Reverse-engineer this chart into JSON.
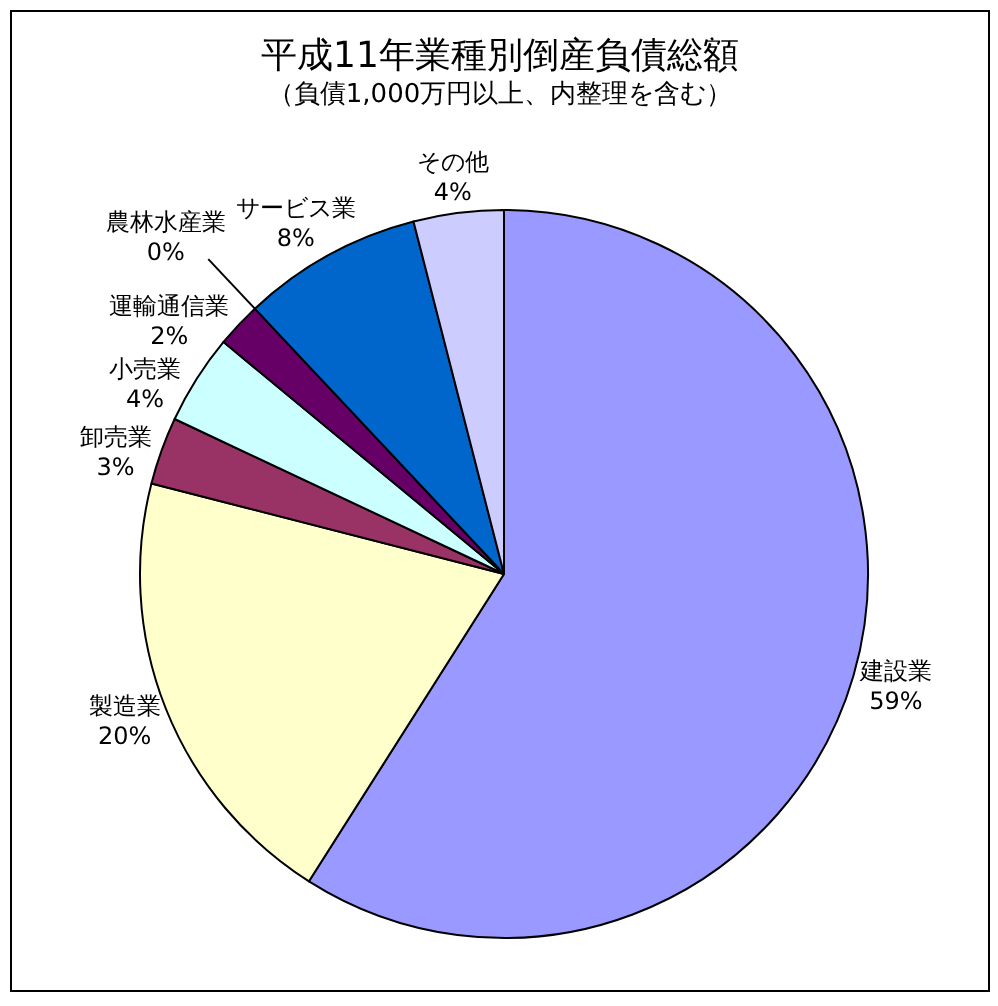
{
  "chart_data": {
    "type": "pie",
    "title": "平成11年業種別倒産負債総額",
    "subtitle": "（負債1,000万円以上、内整理を含む）",
    "categories": [
      "建設業",
      "製造業",
      "卸売業",
      "小売業",
      "運輸通信業",
      "農林水産業",
      "サービス業",
      "その他"
    ],
    "values": [
      59,
      20,
      3,
      4,
      2,
      0,
      8,
      4
    ],
    "value_labels": [
      "59%",
      "20%",
      "3%",
      "4%",
      "2%",
      "0%",
      "8%",
      "4%"
    ],
    "colors": [
      "#9999ff",
      "#ffffcc",
      "#993366",
      "#ccffff",
      "#660066",
      "#ff8080",
      "#0066cc",
      "#ccccff"
    ],
    "legend": false
  }
}
